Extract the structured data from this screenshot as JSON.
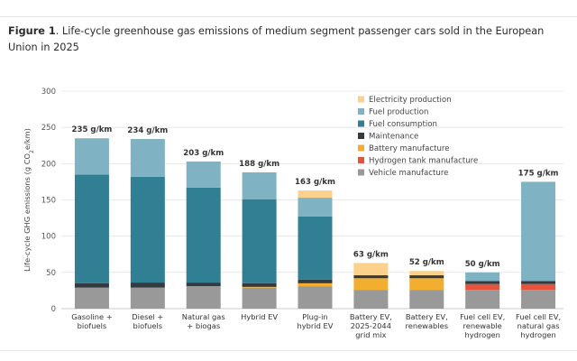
{
  "figure": {
    "label": "Figure 1",
    "text": ". Life-cycle greenhouse gas emissions of medium segment passenger cars sold in the European Union in 2025"
  },
  "chart_data": {
    "type": "bar",
    "stacked": true,
    "title": "Figure 1. Life-cycle greenhouse gas emissions of medium segment passenger cars sold in the European Union in 2025",
    "ylabel": "Life-cycle GHG emissions (g CO2e/km)",
    "ylim": [
      0,
      300
    ],
    "yticks": [
      0,
      50,
      100,
      150,
      200,
      250,
      300
    ],
    "grid": true,
    "legend_position": "top-center",
    "categories": [
      [
        "Gasoline +",
        "biofuels"
      ],
      [
        "Diesel +",
        "biofuels"
      ],
      [
        "Natural gas",
        "+ biogas"
      ],
      [
        "Hybrid EV"
      ],
      [
        "Plug-in",
        "hybrid EV"
      ],
      [
        "Battery EV,",
        "2025-2044",
        "grid mix"
      ],
      [
        "Battery EV,",
        "renewables"
      ],
      [
        "Fuel cell EV,",
        "renewable",
        "hydrogen"
      ],
      [
        "Fuel cell EV,",
        "natural gas",
        "hydrogen"
      ]
    ],
    "totals": [
      "235 g/km",
      "234 g/km",
      "203 g/km",
      "188 g/km",
      "163 g/km",
      "63 g/km",
      "52 g/km",
      "50 g/km",
      "175 g/km"
    ],
    "series": [
      {
        "name": "Vehicle manufacture",
        "color": "#999999",
        "values": [
          29,
          29,
          31,
          29,
          31,
          26,
          26,
          26,
          26
        ]
      },
      {
        "name": "Hydrogen tank manufacture",
        "color": "#e5533d",
        "values": [
          0,
          0,
          0,
          0,
          0,
          0,
          0,
          8,
          8
        ]
      },
      {
        "name": "Battery manufacture",
        "color": "#f2ae2e",
        "values": [
          0,
          0,
          0,
          1,
          4,
          16,
          16,
          0,
          0
        ]
      },
      {
        "name": "Maintenance",
        "color": "#333a40",
        "values": [
          6,
          7,
          5,
          5,
          5,
          4,
          4,
          4,
          4
        ]
      },
      {
        "name": "Fuel consumption",
        "color": "#317f92",
        "values": [
          150,
          146,
          131,
          116,
          87,
          0,
          0,
          0,
          0
        ]
      },
      {
        "name": "Fuel production",
        "color": "#7fb2c2",
        "values": [
          50,
          52,
          36,
          37,
          26,
          0,
          0,
          12,
          137
        ]
      },
      {
        "name": "Electricity production",
        "color": "#fbd18b",
        "values": [
          0,
          0,
          0,
          0,
          10,
          17,
          6,
          0,
          0
        ]
      }
    ],
    "legend_order": [
      "Electricity production",
      "Fuel production",
      "Fuel consumption",
      "Maintenance",
      "Battery manufacture",
      "Hydrogen tank manufacture",
      "Vehicle manufacture"
    ]
  }
}
